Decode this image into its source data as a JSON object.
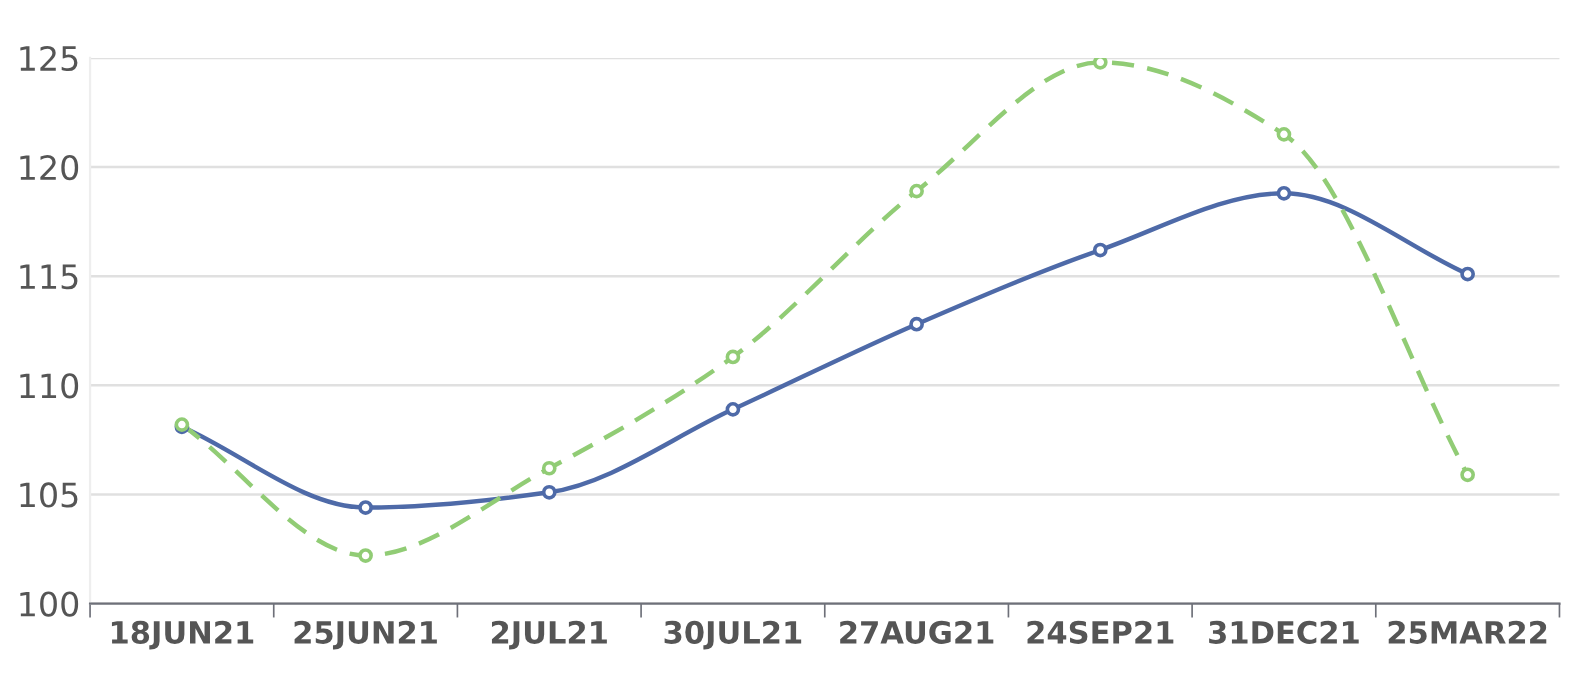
{
  "chart_data": {
    "type": "line",
    "categories": [
      "18JUN21",
      "25JUN21",
      "2JUL21",
      "30JUL21",
      "27AUG21",
      "24SEP21",
      "31DEC21",
      "25MAR22"
    ],
    "series": [
      {
        "color": "#4e6aa8",
        "values": [
          108.1,
          104.4,
          105.1,
          108.9,
          112.8,
          116.2,
          118.8,
          115.1
        ],
        "line_style": "solid"
      },
      {
        "color": "#91cc75",
        "values": [
          108.2,
          102.2,
          106.2,
          111.3,
          118.9,
          124.8,
          121.5,
          105.9
        ],
        "line_style": "dashed"
      }
    ],
    "ylim": [
      100,
      125
    ],
    "yticks": [
      100,
      105,
      110,
      115,
      120,
      125
    ],
    "grid": "y",
    "marker": "circle",
    "legend": false
  }
}
